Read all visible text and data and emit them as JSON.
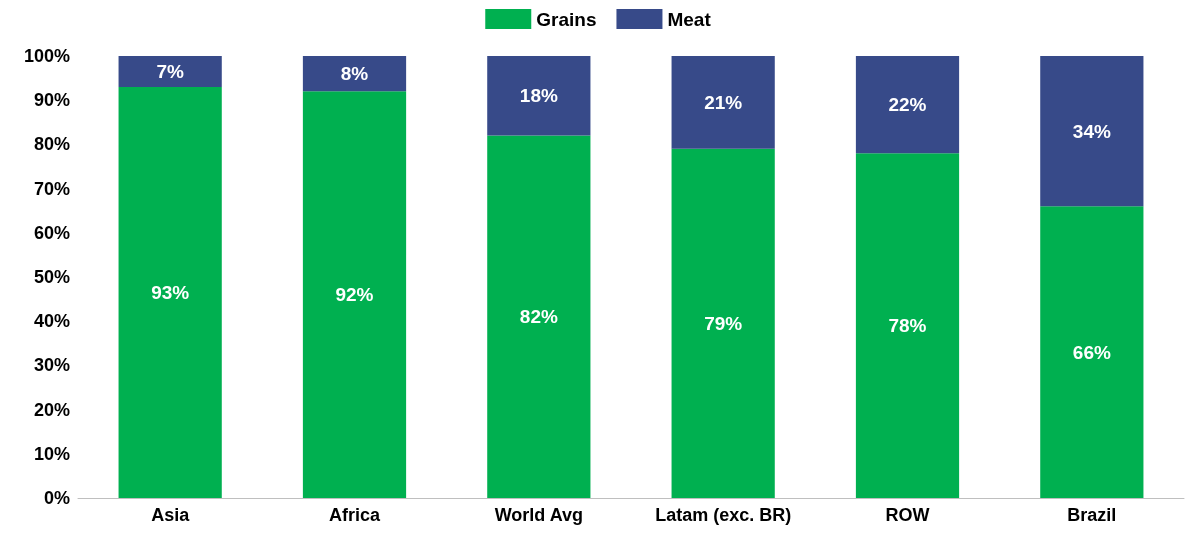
{
  "chart_data": {
    "type": "bar",
    "stacked": true,
    "categories": [
      "Asia",
      "Africa",
      "World Avg",
      "Latam (exc. BR)",
      "ROW",
      "Brazil"
    ],
    "series": [
      {
        "name": "Grains",
        "color": "#00b050",
        "values": [
          93,
          92,
          82,
          79,
          78,
          66
        ],
        "value_labels": [
          "93%",
          "92%",
          "82%",
          "79%",
          "78%",
          "66%"
        ]
      },
      {
        "name": "Meat",
        "color": "#374a89",
        "values": [
          7,
          8,
          18,
          21,
          22,
          34
        ],
        "value_labels": [
          "7%",
          "8%",
          "18%",
          "21%",
          "22%",
          "34%"
        ]
      }
    ],
    "ylim": [
      0,
      100
    ],
    "yticks": [
      {
        "value": 0,
        "label": "0%"
      },
      {
        "value": 10,
        "label": "10%"
      },
      {
        "value": 20,
        "label": "20%"
      },
      {
        "value": 30,
        "label": "30%"
      },
      {
        "value": 40,
        "label": "40%"
      },
      {
        "value": 50,
        "label": "50%"
      },
      {
        "value": 60,
        "label": "60%"
      },
      {
        "value": 70,
        "label": "70%"
      },
      {
        "value": 80,
        "label": "80%"
      },
      {
        "value": 90,
        "label": "90%"
      },
      {
        "value": 100,
        "label": "100%"
      }
    ],
    "grid": false,
    "legend": "top"
  }
}
